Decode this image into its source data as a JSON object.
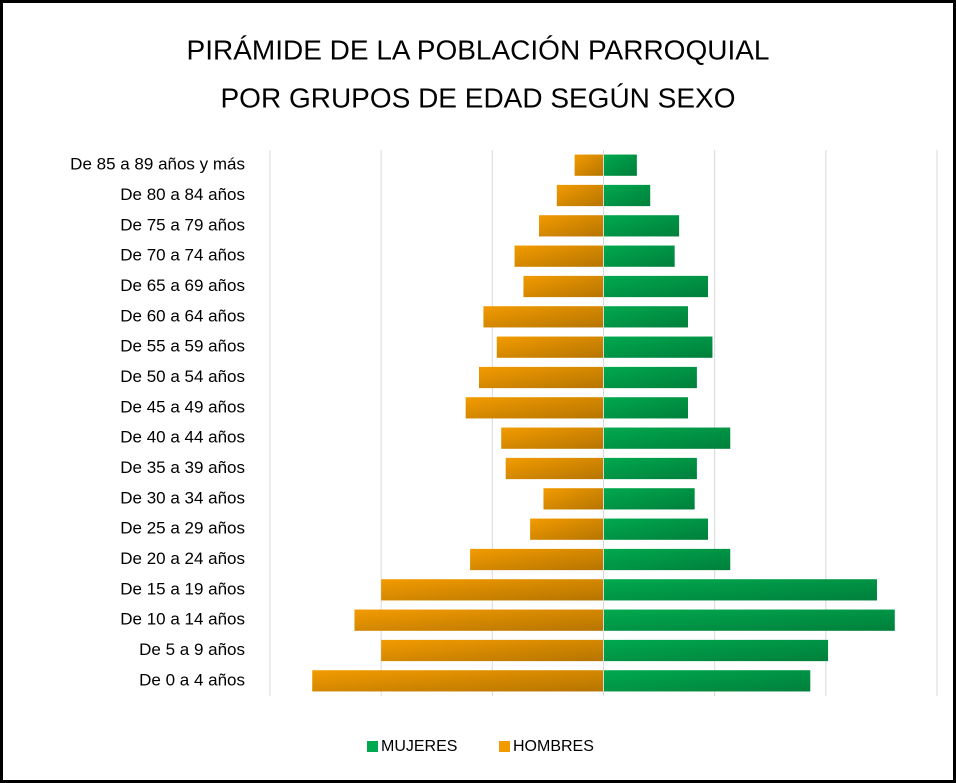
{
  "chart_data": {
    "type": "pyramid",
    "title": [
      "PIRÁMIDE DE LA POBLACIÓN PARROQUIAL",
      "POR GRUPOS DE EDAD SEGÚN SEXO"
    ],
    "categories": [
      "De 85 a 89 años y más",
      "De 80 a 84 años",
      "De 75 a 79 años",
      "De 70 a 74 años",
      "De 65 a 69 años",
      "De 60 a 64 años",
      "De 55 a 59 años",
      "De 50 a 54 años",
      "De 45 a 49 años",
      "De 40 a 44 años",
      "De 35 a 39 años",
      "De 30 a 34 años",
      "De 25 a 29 años",
      "De 20 a 24 años",
      "De 15 a 19 años",
      "De 10 a 14 años",
      "De 5 a 9 años",
      "De 0 a 4 años"
    ],
    "series": [
      {
        "name": "MUJERES",
        "color": "#00a94f",
        "values": [
          15,
          21,
          34,
          32,
          47,
          38,
          49,
          42,
          38,
          57,
          42,
          41,
          47,
          57,
          123,
          131,
          101,
          93
        ]
      },
      {
        "name": "HOMBRES",
        "color": "#f29b00",
        "values": [
          -13,
          -21,
          -29,
          -40,
          -36,
          -54,
          -48,
          -56,
          -62,
          -46,
          -44,
          -27,
          -33,
          -60,
          -100,
          -112,
          -100,
          -131
        ]
      }
    ],
    "xlim": [
      -150,
      150
    ],
    "xticks": [
      -150,
      -100,
      -50,
      0,
      50,
      100,
      150
    ],
    "grid": true,
    "legend": "bottom"
  }
}
